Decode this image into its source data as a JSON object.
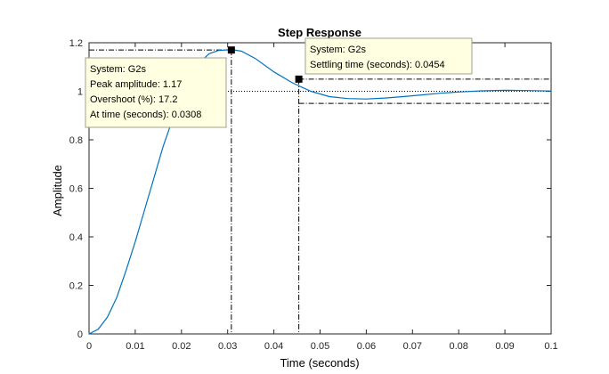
{
  "chart_data": {
    "type": "line",
    "title": "Step Response",
    "xlabel": "Time (seconds)",
    "ylabel": "Amplitude",
    "xlim": [
      0,
      0.1
    ],
    "ylim": [
      0,
      1.2
    ],
    "xticks": [
      0,
      0.01,
      0.02,
      0.03,
      0.04,
      0.05,
      0.06,
      0.07,
      0.08,
      0.09,
      0.1
    ],
    "xtick_labels": [
      "0",
      "0.01",
      "0.02",
      "0.03",
      "0.04",
      "0.05",
      "0.06",
      "0.07",
      "0.08",
      "0.09",
      "0.1"
    ],
    "yticks": [
      0,
      0.2,
      0.4,
      0.6,
      0.8,
      1,
      1.2
    ],
    "ytick_labels": [
      "0",
      "0.2",
      "0.4",
      "0.6",
      "0.8",
      "1",
      "1.2"
    ],
    "grid": false,
    "series": [
      {
        "color": "#0072bd",
        "x": [
          0,
          0.002,
          0.004,
          0.006,
          0.008,
          0.01,
          0.012,
          0.014,
          0.016,
          0.018,
          0.02,
          0.022,
          0.024,
          0.026,
          0.028,
          0.0308,
          0.033,
          0.036,
          0.04,
          0.044,
          0.048,
          0.052,
          0.056,
          0.06,
          0.064,
          0.068,
          0.072,
          0.076,
          0.08,
          0.085,
          0.09,
          0.095,
          0.1
        ],
        "y": [
          0,
          0.02,
          0.07,
          0.15,
          0.26,
          0.38,
          0.51,
          0.64,
          0.77,
          0.88,
          0.98,
          1.06,
          1.12,
          1.155,
          1.168,
          1.172,
          1.165,
          1.135,
          1.08,
          1.035,
          1.0,
          0.978,
          0.97,
          0.968,
          0.972,
          0.978,
          0.985,
          0.992,
          0.997,
          1.002,
          1.004,
          1.003,
          1.001
        ]
      }
    ],
    "steady_state": 1,
    "settling_band": [
      0.95,
      1.05
    ],
    "markers": [
      {
        "x": 0.0308,
        "y": 1.17
      },
      {
        "x": 0.0454,
        "y": 1.05
      }
    ],
    "annotations": [
      {
        "lines": [
          "System: G2s",
          "Peak amplitude: 1.17",
          "Overshoot (%): 17.2",
          "At time (seconds): 0.0308"
        ]
      },
      {
        "lines": [
          "System: G2s",
          "Settling time (seconds): 0.0454"
        ]
      }
    ]
  },
  "colors": {
    "line": "#0072bd",
    "tooltip_bg": "#ffffe1",
    "tooltip_border": "#a0a08c",
    "axes": "#262626"
  }
}
